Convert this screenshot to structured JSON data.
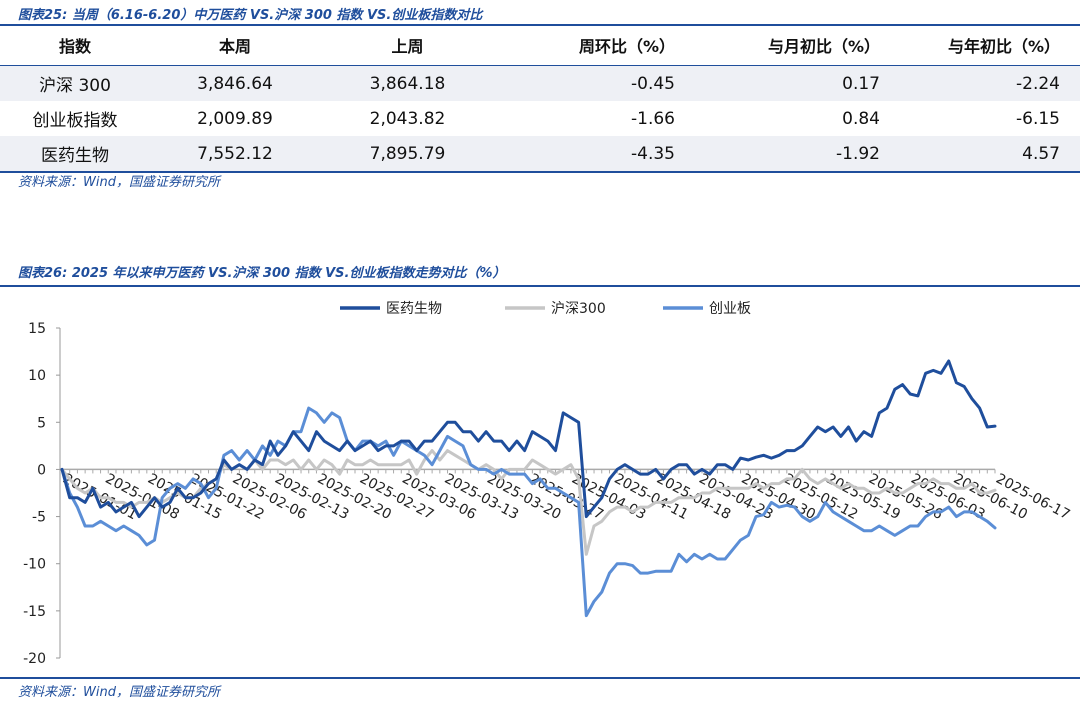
{
  "fig25": {
    "caption": "图表25: 当周（6.16-6.20）中万医药 VS.沪深 300 指数 VS.创业板指数对比",
    "headers": [
      "指数",
      "本周",
      "上周",
      "周环比（%）",
      "与月初比（%）",
      "与年初比（%）"
    ],
    "rows": [
      [
        "沪深 300",
        "3,846.64",
        "3,864.18",
        "-0.45",
        "0.17",
        "-2.24"
      ],
      [
        "创业板指数",
        "2,009.89",
        "2,043.82",
        "-1.66",
        "0.84",
        "-6.15"
      ],
      [
        "医药生物",
        "7,552.12",
        "7,895.79",
        "-4.35",
        "-1.92",
        "4.57"
      ]
    ],
    "source": "资料来源：Wind，国盛证券研究所"
  },
  "fig26": {
    "caption": "图表26: 2025 年以来申万医药 VS.沪深 300 指数 VS.创业板指数走势对比（%）",
    "source": "资料来源：Wind，国盛证券研究所"
  },
  "chart_data": {
    "type": "line",
    "ylim": [
      -20,
      15
    ],
    "yticks": [
      15,
      10,
      5,
      0,
      -5,
      -10,
      -15,
      -20
    ],
    "xticks": [
      "2025-01-01",
      "2025-01-08",
      "2025-01-15",
      "2025-01-22",
      "2025-02-06",
      "2025-02-13",
      "2025-02-20",
      "2025-02-27",
      "2025-03-06",
      "2025-03-13",
      "2025-03-20",
      "2025-03-27",
      "2025-04-03",
      "2025-04-11",
      "2025-04-18",
      "2025-04-23",
      "2025-04-30",
      "2025-05-12",
      "2025-05-19",
      "2025-05-26",
      "2025-06-03",
      "2025-06-10",
      "2025-06-17"
    ],
    "grid": false,
    "legend_position": "top",
    "series": [
      {
        "name": "医药生物",
        "color": "#1f4e9c",
        "values": [
          0,
          -3,
          -3,
          -3.5,
          -2,
          -4,
          -3.5,
          -4.5,
          -4,
          -3.5,
          -5,
          -4,
          -3,
          -4,
          -3.5,
          -2,
          -3,
          -3,
          -2.5,
          -1.5,
          -1,
          1,
          0,
          0.5,
          0,
          1,
          0.5,
          3,
          1.5,
          2.5,
          4,
          3,
          2,
          4,
          3,
          2.5,
          2,
          3,
          2,
          2.5,
          3,
          2,
          2.5,
          2.5,
          3,
          3,
          2,
          3,
          3,
          4,
          5,
          5,
          4,
          4,
          3,
          4,
          3,
          3,
          2,
          3,
          2,
          4,
          3.5,
          3,
          2,
          6,
          5.5,
          5,
          -5,
          -4,
          -3,
          -1,
          0,
          0.5,
          0,
          -0.5,
          -0.5,
          0,
          -1,
          0,
          0.5,
          0.5,
          -0.5,
          0,
          -0.5,
          0.5,
          0.5,
          0,
          1.2,
          1,
          1.3,
          1.5,
          1.2,
          1.5,
          2,
          2,
          2.5,
          3.5,
          4.5,
          4,
          4.5,
          3.5,
          4.5,
          3,
          4,
          3.5,
          6,
          6.5,
          8.5,
          9,
          8,
          7.8,
          10.2,
          10.5,
          10.2,
          11.5,
          9.2,
          8.8,
          7.5,
          6.5,
          4.5,
          4.6
        ]
      },
      {
        "name": "沪深300",
        "color": "#c6c6c6",
        "values": [
          0,
          -1,
          -2,
          -2.5,
          -2,
          -3,
          -3,
          -3.5,
          -3.5,
          -4,
          -3.5,
          -3.5,
          -3,
          -3.5,
          -3,
          -2.5,
          -3,
          -3,
          -2,
          -1.5,
          -1,
          0.5,
          0,
          0.5,
          0,
          1,
          0,
          1,
          1,
          0.5,
          1,
          0,
          1,
          0,
          1,
          0.5,
          -0.5,
          1,
          0.5,
          0.5,
          1,
          0.5,
          0.5,
          0.5,
          0.5,
          1,
          -0.5,
          1,
          2,
          1,
          2,
          1.5,
          1,
          0.5,
          0,
          0.5,
          0,
          -1,
          0,
          0,
          0,
          1,
          0.5,
          0,
          -0.5,
          0,
          0.5,
          -1,
          -9,
          -6,
          -5.5,
          -4.5,
          -4,
          -4,
          -4.5,
          -4,
          -4,
          -3.5,
          -3.5,
          -3.5,
          -3,
          -3,
          -3,
          -2.5,
          -2.5,
          -2,
          -2,
          -2,
          -2,
          -2,
          -1.5,
          -2,
          -1.5,
          -1.5,
          -1,
          -1,
          0,
          -1,
          -1.5,
          -1,
          -1.5,
          -2,
          -1.5,
          -2,
          -2,
          -2.5,
          -2.5,
          -2,
          -2.5,
          -2.5,
          -2,
          -1.5,
          -1.5,
          -1,
          -1.5,
          -1.5,
          -2,
          -2,
          -1.5,
          -2.5,
          -2.5,
          -2.2
        ]
      },
      {
        "name": "创业板",
        "color": "#5b8ed6",
        "values": [
          0,
          -2.5,
          -4,
          -6,
          -6,
          -5.5,
          -6,
          -6.5,
          -6,
          -6.5,
          -7,
          -8,
          -7.5,
          -3,
          -2,
          -1.5,
          -2,
          -1,
          -1.5,
          -3,
          -2,
          1.5,
          2,
          1,
          2,
          1,
          2.5,
          1.5,
          3,
          2.5,
          4,
          4,
          6.5,
          6,
          5,
          6,
          5.5,
          3,
          2,
          3,
          3,
          2.5,
          3,
          1.5,
          3,
          2.5,
          2,
          1.5,
          0.5,
          2,
          3.5,
          3,
          2.5,
          0.5,
          0,
          0,
          -0.5,
          0,
          -0.5,
          -0.5,
          -0.5,
          -1.5,
          -1,
          -2,
          -2,
          -2.5,
          -3,
          -3.5,
          -15.5,
          -14,
          -13,
          -11,
          -10,
          -10,
          -10.2,
          -11,
          -11,
          -10.8,
          -10.8,
          -10.8,
          -9,
          -9.8,
          -9,
          -9.5,
          -9,
          -9.5,
          -9.5,
          -8.5,
          -7.5,
          -7,
          -5,
          -4.8,
          -3.5,
          -4,
          -3.8,
          -4,
          -5,
          -5.5,
          -5,
          -3.5,
          -4.5,
          -5,
          -5.5,
          -6,
          -6.5,
          -6.5,
          -6,
          -6.5,
          -7,
          -6.5,
          -6,
          -6,
          -5,
          -4.5,
          -4.5,
          -4,
          -5,
          -4.5,
          -4.5,
          -5,
          -5.5,
          -6.2
        ]
      }
    ]
  }
}
